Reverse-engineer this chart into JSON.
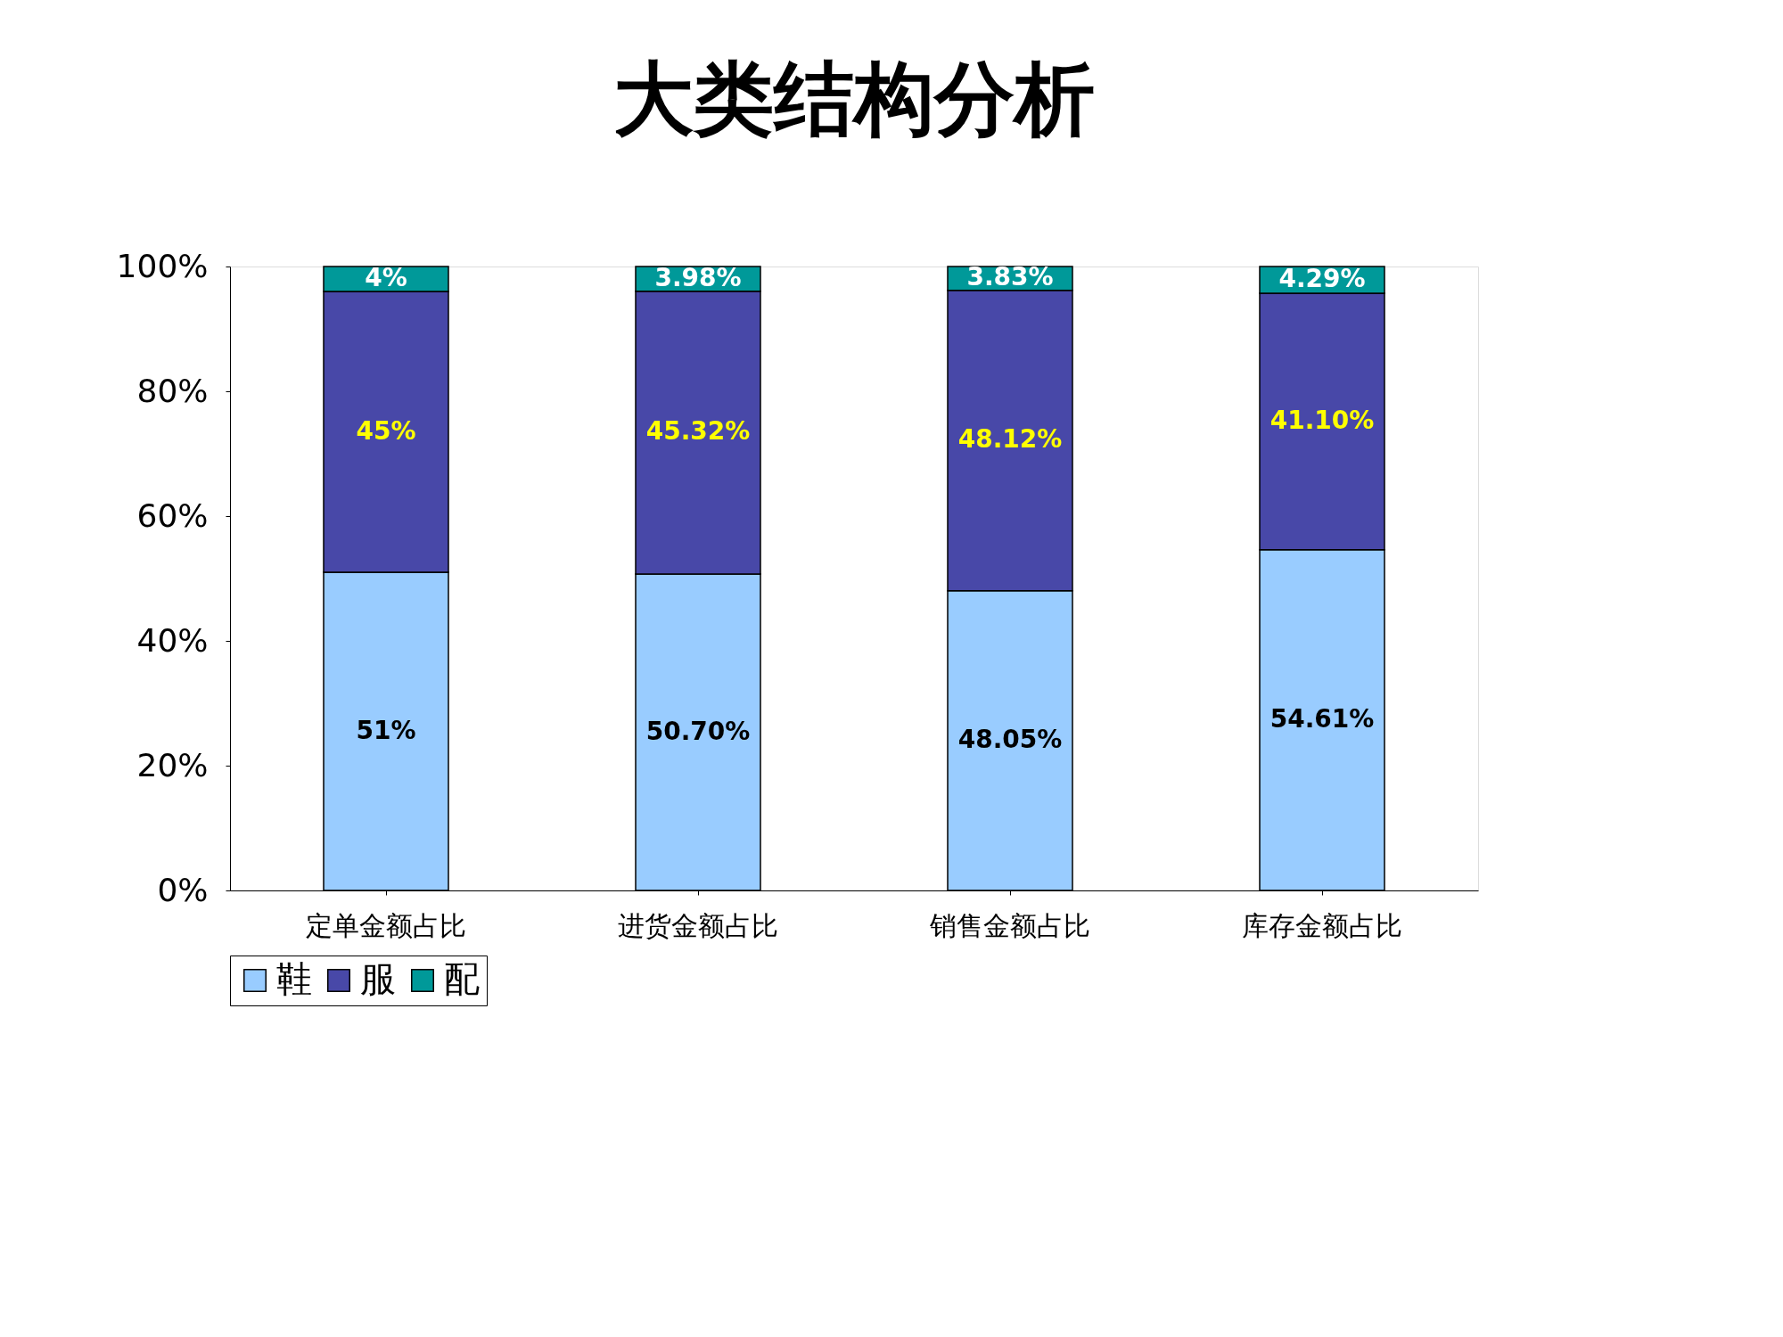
{
  "chart_data": {
    "type": "bar",
    "title": "大类结构分析",
    "stacked": true,
    "categories": [
      "定单金额占比",
      "进货金额占比",
      "销售金额占比",
      "库存金额占比"
    ],
    "series": [
      {
        "name": "鞋",
        "color": "#99ccff",
        "values": [
          51,
          50.7,
          48.05,
          54.61
        ],
        "value_labels": [
          "51%",
          "50.70%",
          "48.05%",
          "54.61%"
        ]
      },
      {
        "name": "服",
        "color": "#4848a8",
        "values": [
          45,
          45.32,
          48.12,
          41.1
        ],
        "value_labels": [
          "45%",
          "45.32%",
          "48.12%",
          "41.10%"
        ]
      },
      {
        "name": "配",
        "color": "#009999",
        "values": [
          4,
          3.98,
          3.83,
          4.29
        ],
        "value_labels": [
          "4%",
          "3.98%",
          "3.83%",
          "4.29%"
        ]
      }
    ],
    "ylim": [
      0,
      100
    ],
    "yticks": [
      {
        "value": 0,
        "label": "0%"
      },
      {
        "value": 20,
        "label": "20%"
      },
      {
        "value": 40,
        "label": "40%"
      },
      {
        "value": 60,
        "label": "60%"
      },
      {
        "value": 80,
        "label": "80%"
      },
      {
        "value": 100,
        "label": "100%"
      }
    ],
    "grid": false,
    "legend": "bottom"
  }
}
